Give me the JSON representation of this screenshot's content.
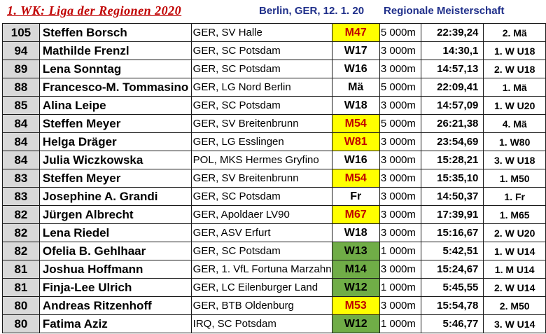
{
  "header": {
    "title": "1. WK: Liga der Regionen 2020",
    "place": "Berlin, GER,  12. 1. 20",
    "event": "Regionale Meisterschaft"
  },
  "colors": {
    "yellow_class": "#ffff00",
    "green_class": "#70ad47",
    "title_red": "#c00000",
    "header_blue": "#1f2f8a"
  },
  "rows": [
    {
      "pts": "105",
      "name": "Steffen Borsch",
      "club": "GER, SV Halle",
      "cls": "M47",
      "hl": "yellow",
      "dist": "5 000m",
      "time": "22:39,24",
      "place": "2. Mä"
    },
    {
      "pts": "94",
      "name": "Mathilde Frenzl",
      "club": "GER, SC Potsdam",
      "cls": "W17",
      "hl": "",
      "dist": "3 000m",
      "time": "14:30,1",
      "place": "1. W U18"
    },
    {
      "pts": "89",
      "name": "Lena Sonntag",
      "club": "GER, SC Potsdam",
      "cls": "W16",
      "hl": "",
      "dist": "3 000m",
      "time": "14:57,13",
      "place": "2. W U18"
    },
    {
      "pts": "88",
      "name": "Francesco-M. Tommasino",
      "club": "GER, LG Nord Berlin",
      "cls": "Mä",
      "hl": "",
      "dist": "5 000m",
      "time": "22:09,41",
      "place": "1. Mä"
    },
    {
      "pts": "85",
      "name": "Alina Leipe",
      "club": "GER, SC Potsdam",
      "cls": "W18",
      "hl": "",
      "dist": "3 000m",
      "time": "14:57,09",
      "place": "1. W U20"
    },
    {
      "pts": "84",
      "name": "Steffen Meyer",
      "club": "GER, SV Breitenbrunn",
      "cls": "M54",
      "hl": "yellow",
      "dist": "5 000m",
      "time": "26:21,38",
      "place": "4. Mä"
    },
    {
      "pts": "84",
      "name": "Helga Dräger",
      "club": "GER, LG Esslingen",
      "cls": "W81",
      "hl": "yellow",
      "dist": "3 000m",
      "time": "23:54,69",
      "place": "1. W80"
    },
    {
      "pts": "84",
      "name": "Julia Wiczkowska",
      "club": "POL, MKS Hermes Gryfino",
      "cls": "W16",
      "hl": "",
      "dist": "3 000m",
      "time": "15:28,21",
      "place": "3. W U18"
    },
    {
      "pts": "83",
      "name": "Steffen Meyer",
      "club": "GER, SV Breitenbrunn",
      "cls": "M54",
      "hl": "yellow",
      "dist": "3 000m",
      "time": "15:35,10",
      "place": "1. M50"
    },
    {
      "pts": "83",
      "name": "Josephine A. Grandi",
      "club": "GER, SC Potsdam",
      "cls": "Fr",
      "hl": "",
      "dist": "3 000m",
      "time": "14:50,37",
      "place": "1. Fr"
    },
    {
      "pts": "82",
      "name": "Jürgen Albrecht",
      "club": "GER, Apoldaer LV90",
      "cls": "M67",
      "hl": "yellow",
      "dist": "3 000m",
      "time": "17:39,91",
      "place": "1. M65"
    },
    {
      "pts": "82",
      "name": "Lena Riedel",
      "club": "GER, ASV Erfurt",
      "cls": "W18",
      "hl": "",
      "dist": "3 000m",
      "time": "15:16,67",
      "place": "2. W U20"
    },
    {
      "pts": "82",
      "name": "Ofelia B. Gehlhaar",
      "club": "GER, SC Potsdam",
      "cls": "W13",
      "hl": "green",
      "dist": "1 000m",
      "time": "5:42,51",
      "place": "1. W U14"
    },
    {
      "pts": "81",
      "name": "Joshua Hoffmann",
      "club": "GER, 1. VfL Fortuna Marzahn",
      "cls": "M14",
      "hl": "green",
      "dist": "3 000m",
      "time": "15:24,67",
      "place": "1. M U14"
    },
    {
      "pts": "81",
      "name": "Finja-Lee Ulrich",
      "club": "GER, LC Eilenburger Land",
      "cls": "W12",
      "hl": "green",
      "dist": "1 000m",
      "time": "5:45,55",
      "place": "2. W U14"
    },
    {
      "pts": "80",
      "name": "Andreas Ritzenhoff",
      "club": "GER, BTB Oldenburg",
      "cls": "M53",
      "hl": "yellow",
      "dist": "3 000m",
      "time": "15:54,78",
      "place": "2. M50"
    },
    {
      "pts": "80",
      "name": "Fatima Aziz",
      "club": "IRQ, SC Potsdam",
      "cls": "W12",
      "hl": "green",
      "dist": "1 000m",
      "time": "5:46,77",
      "place": "3. W U14"
    }
  ]
}
